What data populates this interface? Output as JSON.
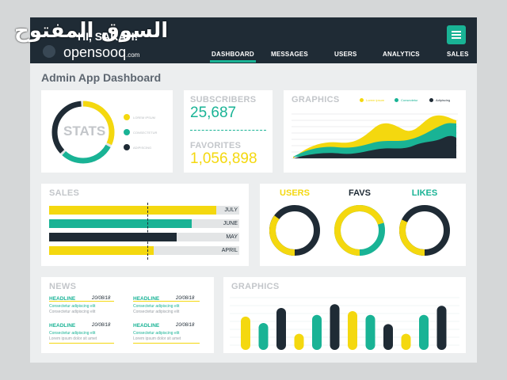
{
  "brand": {
    "arabic": "السوق المفتوح",
    "greeting": "HI, SARAH!",
    "name": "opensooq",
    "suffix": ".com"
  },
  "nav": [
    {
      "label": "DASHBOARD",
      "active": true
    },
    {
      "label": "MESSAGES",
      "active": false
    },
    {
      "label": "USERS",
      "active": false
    },
    {
      "label": "ANALYTICS",
      "active": false
    },
    {
      "label": "SALES",
      "active": false
    }
  ],
  "colors": {
    "dark": "#1f2b35",
    "teal": "#19b395",
    "yellow": "#f4d80f",
    "gray": "#e3e5e6"
  },
  "page_title": "Admin App Dashboard",
  "stats": {
    "label": "STATS",
    "legend": [
      "LOREM IPSUM",
      "CONSECTETUR",
      "ADIPISCING"
    ],
    "fractions": [
      0.33,
      0.3,
      0.37
    ]
  },
  "subscribers": {
    "label": "SUBSCRIBERS",
    "value": "25,687"
  },
  "favorites": {
    "label": "FAVORITES",
    "value": "1,056,898"
  },
  "graphics_area": {
    "title": "GRAPHICS",
    "legend": [
      "Lorem ipsum",
      "Consectetur",
      "Adipiscing"
    ]
  },
  "sales": {
    "title": "SALES",
    "rows": [
      {
        "label": "JULY",
        "fraction": 0.88,
        "color": "yellow"
      },
      {
        "label": "JUNE",
        "fraction": 0.75,
        "color": "teal"
      },
      {
        "label": "MAY",
        "fraction": 0.67,
        "color": "dark"
      },
      {
        "label": "APRIL",
        "fraction": 0.55,
        "color": "yellow"
      }
    ]
  },
  "rings": [
    {
      "label": "USERS",
      "fraction": 0.35,
      "color": "yellow"
    },
    {
      "label": "FAVS",
      "fraction": 0.7,
      "color": "dark"
    },
    {
      "label": "LIKES",
      "fraction": 0.32,
      "color": "teal"
    }
  ],
  "news": {
    "title": "NEWS",
    "items": [
      {
        "headline": "HEADLINE",
        "date": "20/08/18",
        "line1": "Consectetur adipiscing elit",
        "line2": "Consectetur adipiscing elit"
      },
      {
        "headline": "HEADLINE",
        "date": "20/08/18",
        "line1": "Consectetur adipiscing elit",
        "line2": "Consectetur adipiscing elit"
      },
      {
        "headline": "HEADLINE",
        "date": "20/08/18",
        "line1": "Consectetur adipiscing elit",
        "line2": "Lorem ipsum dolor sit amet"
      },
      {
        "headline": "HEADLINE",
        "date": "20/08/18",
        "line1": "Consectetur adipiscing elit",
        "line2": "Lorem ipsum dolor sit amet"
      }
    ]
  },
  "graphics_bars": {
    "title": "GRAPHICS",
    "bars": [
      {
        "value": 0.62,
        "color": "yellow"
      },
      {
        "value": 0.5,
        "color": "teal"
      },
      {
        "value": 0.78,
        "color": "dark"
      },
      {
        "value": 0.3,
        "color": "yellow"
      },
      {
        "value": 0.65,
        "color": "teal"
      },
      {
        "value": 0.85,
        "color": "dark"
      },
      {
        "value": 0.72,
        "color": "yellow"
      },
      {
        "value": 0.65,
        "color": "teal"
      },
      {
        "value": 0.48,
        "color": "dark"
      },
      {
        "value": 0.3,
        "color": "yellow"
      },
      {
        "value": 0.65,
        "color": "teal"
      },
      {
        "value": 0.82,
        "color": "dark"
      }
    ]
  },
  "chart_data": {
    "type": "bar",
    "title": "GRAPHICS",
    "values": [
      0.62,
      0.5,
      0.78,
      0.3,
      0.65,
      0.85,
      0.72,
      0.65,
      0.48,
      0.3,
      0.65,
      0.82
    ]
  }
}
